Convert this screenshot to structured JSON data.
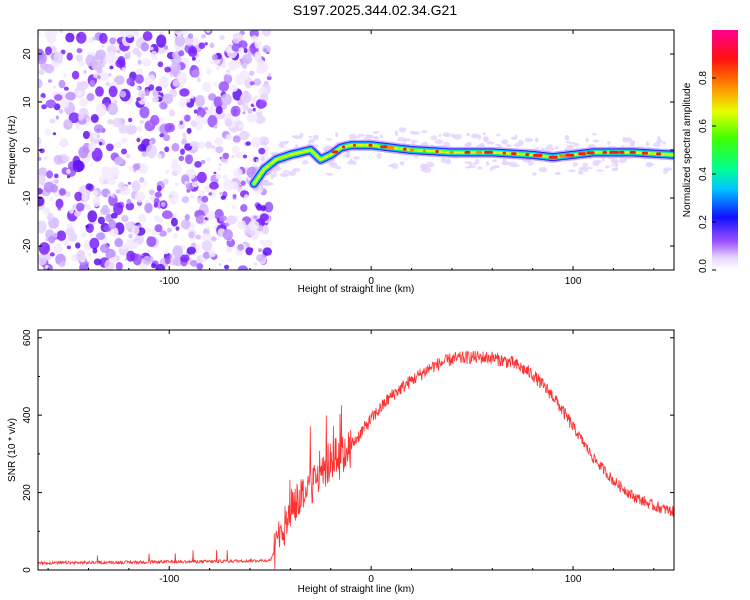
{
  "title": "S197.2025.344.02.34.G21",
  "chart_data": [
    {
      "type": "heatmap",
      "name": "spectrogram",
      "xlabel": "Height of straight line (km)",
      "ylabel": "Frequency (Hz)",
      "xlim": [
        -165,
        150
      ],
      "ylim": [
        -25,
        25
      ],
      "xticks": [
        -100,
        0,
        100
      ],
      "yticks": [
        -20,
        -10,
        0,
        10,
        20
      ],
      "noise_region_x": [
        -165,
        -53
      ],
      "ridge_track": [
        {
          "x": -58,
          "y": -7
        },
        {
          "x": -53,
          "y": -4
        },
        {
          "x": -47,
          "y": -2
        },
        {
          "x": -40,
          "y": -1
        },
        {
          "x": -35,
          "y": -0.5
        },
        {
          "x": -30,
          "y": 0
        },
        {
          "x": -25,
          "y": -2
        },
        {
          "x": -20,
          "y": -1
        },
        {
          "x": -15,
          "y": 0.5
        },
        {
          "x": -10,
          "y": 1
        },
        {
          "x": 0,
          "y": 1
        },
        {
          "x": 10,
          "y": 0.5
        },
        {
          "x": 20,
          "y": 0
        },
        {
          "x": 40,
          "y": -0.5
        },
        {
          "x": 60,
          "y": -0.5
        },
        {
          "x": 80,
          "y": -1
        },
        {
          "x": 90,
          "y": -1.5
        },
        {
          "x": 100,
          "y": -1
        },
        {
          "x": 110,
          "y": -0.5
        },
        {
          "x": 130,
          "y": -0.5
        },
        {
          "x": 150,
          "y": -1
        }
      ],
      "colorbar": {
        "label": "Normalized spectral amplitude",
        "range": [
          0,
          1
        ],
        "ticks": [
          "0.0",
          "0.2",
          "0.4",
          "0.6",
          "0.8"
        ],
        "tick_values": [
          0,
          0.2,
          0.4,
          0.6,
          0.8
        ]
      }
    },
    {
      "type": "line",
      "name": "snr",
      "xlabel": "Height of straight line (km)",
      "ylabel": "SNR (10 * v/v)",
      "xlim": [
        -165,
        150
      ],
      "ylim": [
        0,
        620
      ],
      "xticks": [
        -100,
        0,
        100
      ],
      "yticks": [
        0,
        200,
        400,
        600
      ],
      "color": "#ff3030",
      "envelope": [
        {
          "x": -165,
          "y": 18
        },
        {
          "x": -120,
          "y": 20
        },
        {
          "x": -80,
          "y": 22
        },
        {
          "x": -50,
          "y": 25
        },
        {
          "x": -45,
          "y": 80
        },
        {
          "x": -40,
          "y": 160
        },
        {
          "x": -30,
          "y": 220
        },
        {
          "x": -20,
          "y": 270
        },
        {
          "x": -10,
          "y": 320
        },
        {
          "x": 0,
          "y": 390
        },
        {
          "x": 10,
          "y": 450
        },
        {
          "x": 20,
          "y": 490
        },
        {
          "x": 30,
          "y": 525
        },
        {
          "x": 40,
          "y": 545
        },
        {
          "x": 50,
          "y": 550
        },
        {
          "x": 60,
          "y": 548
        },
        {
          "x": 70,
          "y": 535
        },
        {
          "x": 80,
          "y": 505
        },
        {
          "x": 90,
          "y": 450
        },
        {
          "x": 100,
          "y": 370
        },
        {
          "x": 110,
          "y": 290
        },
        {
          "x": 120,
          "y": 230
        },
        {
          "x": 130,
          "y": 190
        },
        {
          "x": 140,
          "y": 165
        },
        {
          "x": 150,
          "y": 150
        }
      ]
    }
  ]
}
